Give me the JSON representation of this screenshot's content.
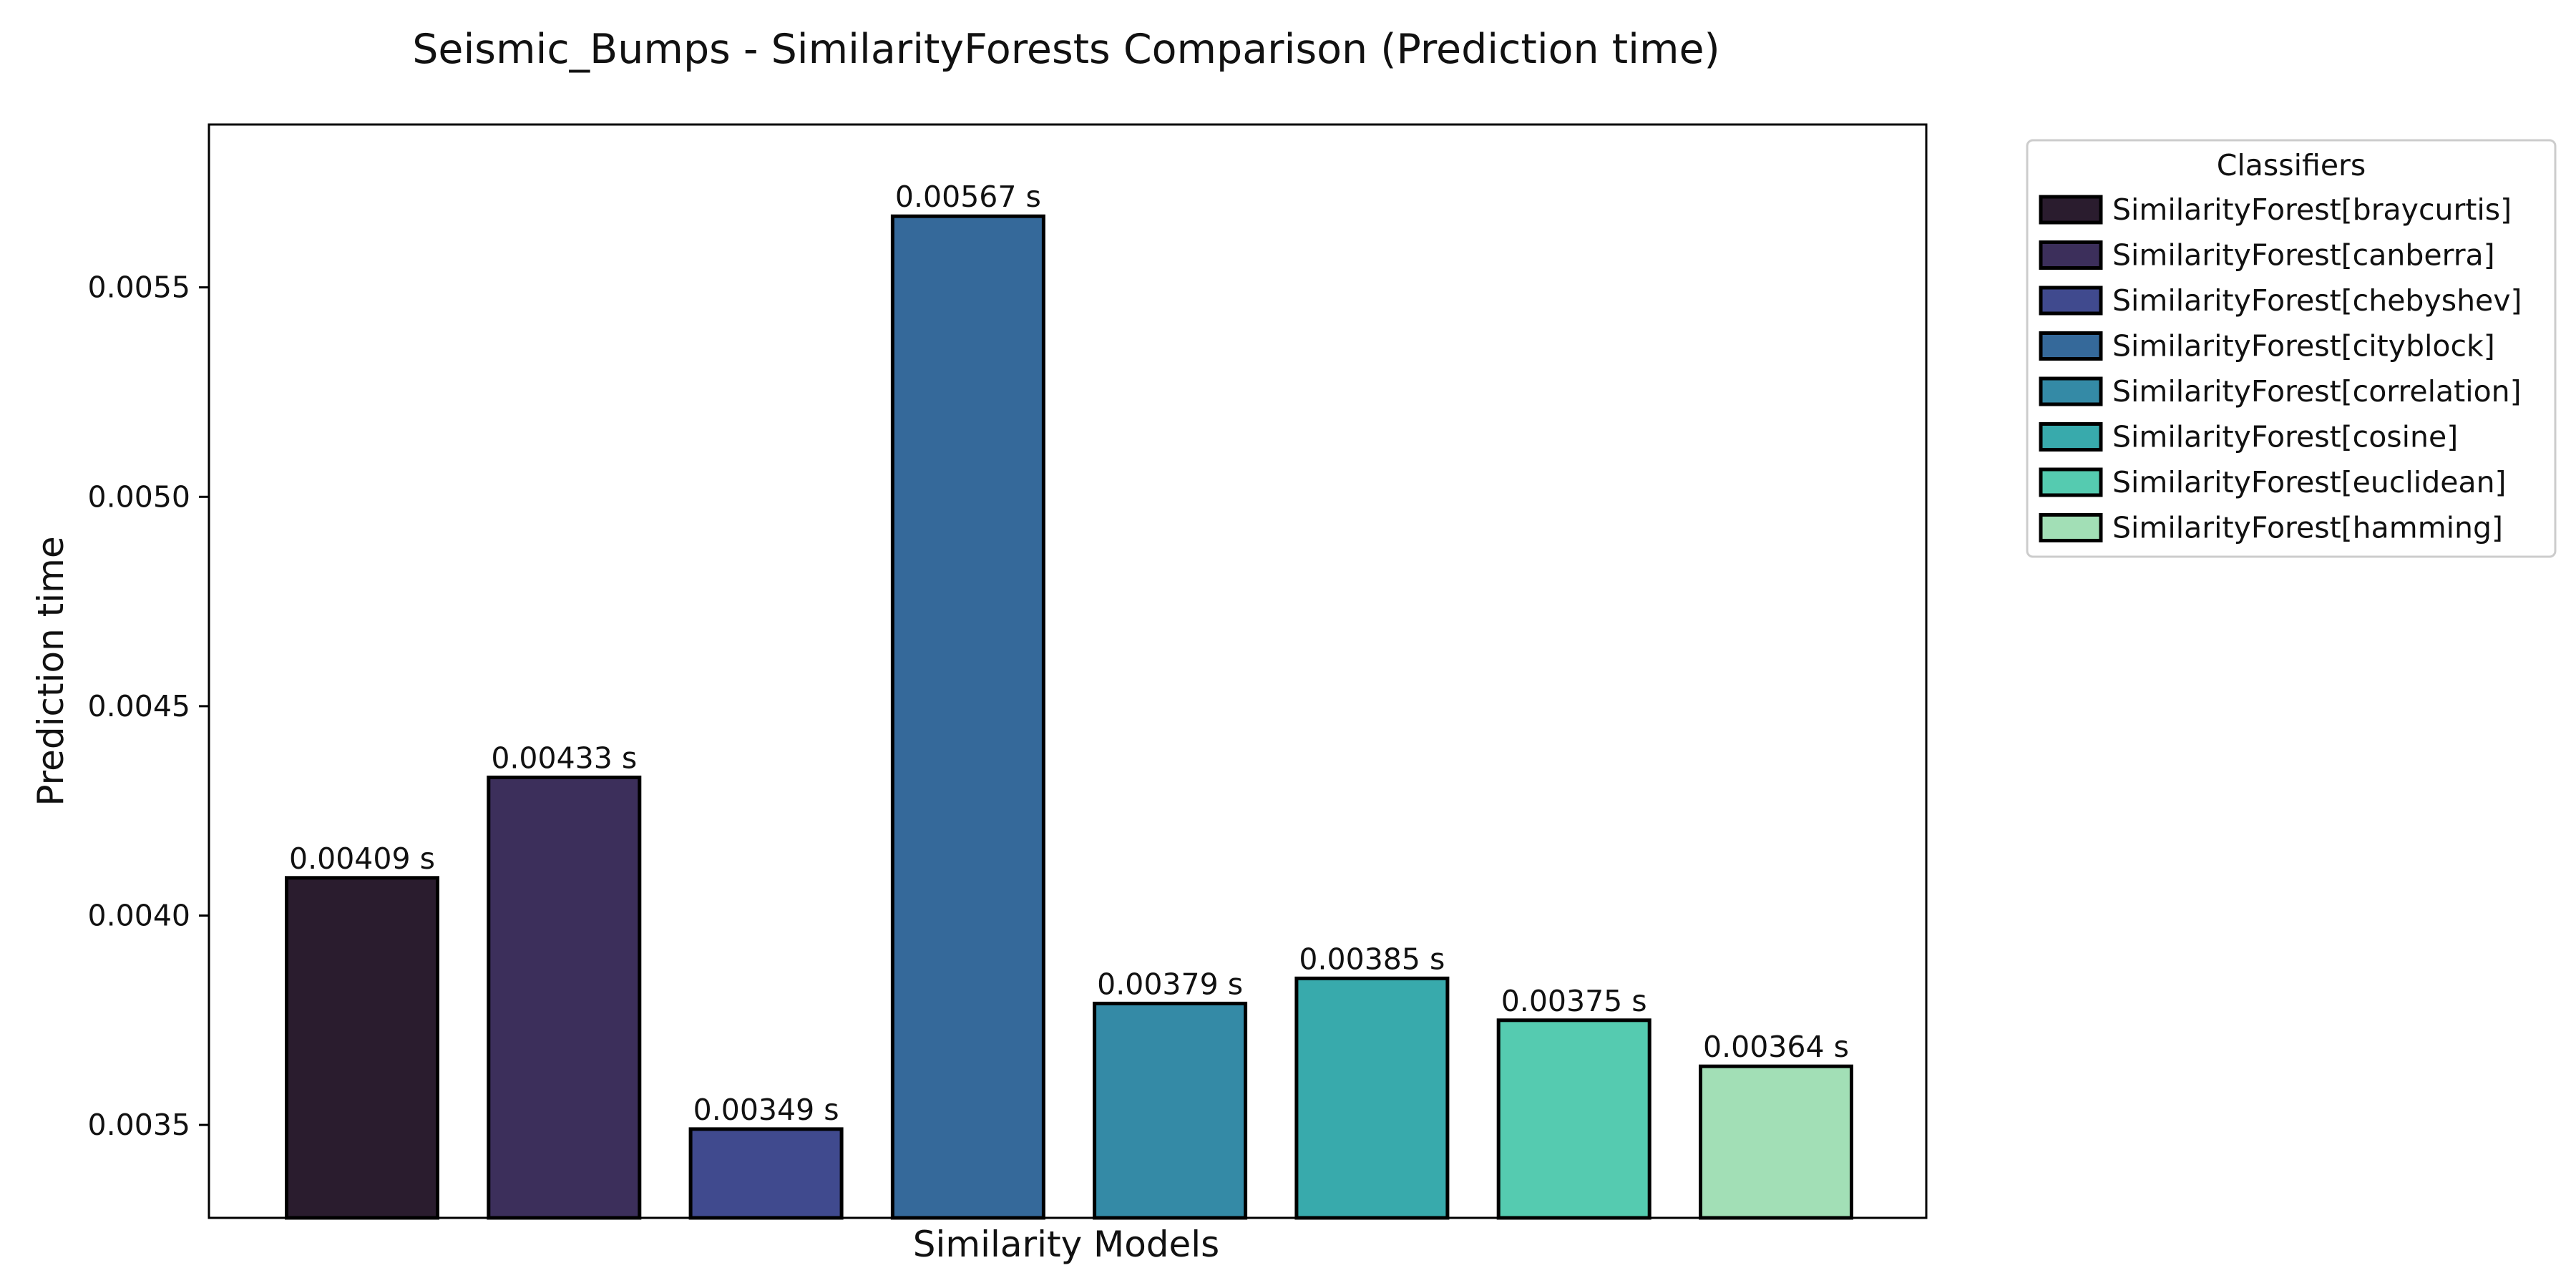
{
  "chart_data": {
    "type": "bar",
    "title": "Seismic_Bumps - SimilarityForests Comparison (Prediction time)",
    "xlabel": "Similarity Models",
    "ylabel": "Prediction time",
    "ylim": [
      0.003278,
      0.005889
    ],
    "yticks": [
      0.0035,
      0.004,
      0.0045,
      0.005,
      0.0055
    ],
    "ytick_labels": [
      "0.0035",
      "0.0040",
      "0.0045",
      "0.0050",
      "0.0055"
    ],
    "categories": [
      "SimilarityForest[braycurtis]",
      "SimilarityForest[canberra]",
      "SimilarityForest[chebyshev]",
      "SimilarityForest[cityblock]",
      "SimilarityForest[correlation]",
      "SimilarityForest[cosine]",
      "SimilarityForest[euclidean]",
      "SimilarityForest[hamming]"
    ],
    "values": [
      0.00409,
      0.00433,
      0.00349,
      0.00567,
      0.00379,
      0.00385,
      0.00375,
      0.00364
    ],
    "value_labels": [
      "0.00409 s",
      "0.00433 s",
      "0.00349 s",
      "0.00567 s",
      "0.00379 s",
      "0.00385 s",
      "0.00375 s",
      "0.00364 s"
    ],
    "colors": [
      "#2a1c2e",
      "#3c2f5b",
      "#404a8e",
      "#35699a",
      "#348aa6",
      "#38aaac",
      "#55cbb0",
      "#a2dfb6"
    ],
    "x_ticks_shown": false,
    "grid": false,
    "legend": {
      "title": "Classifiers",
      "placement": "outside-right-top",
      "entries": [
        "SimilarityForest[braycurtis]",
        "SimilarityForest[canberra]",
        "SimilarityForest[chebyshev]",
        "SimilarityForest[cityblock]",
        "SimilarityForest[correlation]",
        "SimilarityForest[cosine]",
        "SimilarityForest[euclidean]",
        "SimilarityForest[hamming]"
      ]
    }
  }
}
